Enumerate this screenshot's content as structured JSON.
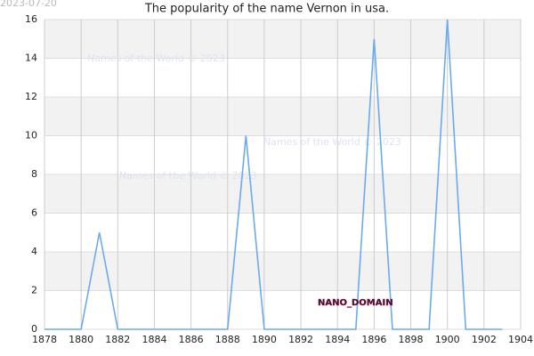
{
  "chart_data": {
    "type": "line",
    "title": "The popularity of the name Vernon in usa.",
    "date_stamp": "2023-07-20",
    "watermarks": [
      "Names of the World © 2023",
      "Names of the World © 2023",
      "Names of the World © 2023"
    ],
    "badge": "NANO_DOMAIN",
    "x": [
      1878,
      1879,
      1880,
      1881,
      1882,
      1883,
      1884,
      1885,
      1886,
      1887,
      1888,
      1889,
      1890,
      1891,
      1892,
      1893,
      1894,
      1895,
      1896,
      1897,
      1898,
      1899,
      1900,
      1901,
      1902,
      1903
    ],
    "series": [
      {
        "name": "Vernon",
        "color": "#6aaaf0",
        "values": [
          0,
          0,
          0,
          5,
          0,
          0,
          0,
          0,
          0,
          0,
          0,
          10,
          0,
          0,
          0,
          0,
          0,
          0,
          15,
          0,
          0,
          0,
          16,
          0,
          0,
          0
        ]
      }
    ],
    "xlim": [
      1878,
      1904
    ],
    "xticks": [
      1878,
      1880,
      1882,
      1884,
      1886,
      1888,
      1890,
      1892,
      1894,
      1896,
      1898,
      1900,
      1902,
      1904
    ],
    "ylim": [
      0,
      16
    ],
    "yticks": [
      0,
      2,
      4,
      6,
      8,
      10,
      12,
      14,
      16
    ],
    "grid": true
  }
}
